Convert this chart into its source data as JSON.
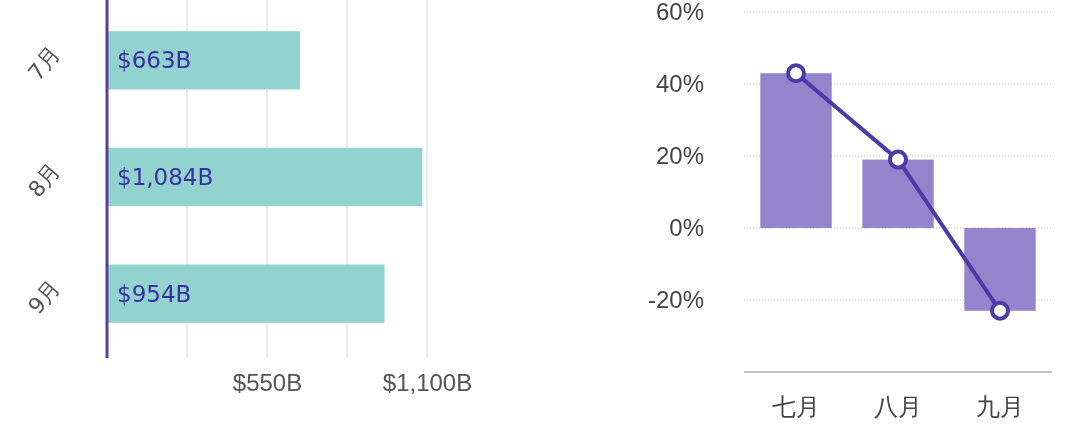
{
  "chart_data": [
    {
      "type": "bar",
      "orientation": "horizontal",
      "categories": [
        "7月",
        "8月",
        "9月"
      ],
      "values": [
        663,
        1084,
        954
      ],
      "color": "#93d3cf",
      "value_labels": [
        "$663B",
        "$1,084B",
        "$954B"
      ],
      "xlim": [
        0,
        1100
      ],
      "xticks": [
        {
          "value": 275,
          "label": null
        },
        {
          "value": 550,
          "label": "$550B"
        },
        {
          "value": 825,
          "label": null
        },
        {
          "value": 1100,
          "label": "$1,100B"
        }
      ],
      "grid": "x"
    },
    {
      "type": "bar",
      "categories": [
        "七月",
        "八月",
        "九月"
      ],
      "series": [
        {
          "type": "bar",
          "color": "#9484cc",
          "values": [
            43,
            19,
            -23
          ]
        },
        {
          "type": "line",
          "color": "#4b3aa8",
          "marker": "circle",
          "values": [
            43,
            19,
            -23
          ]
        }
      ],
      "ylim": [
        -40,
        60
      ],
      "yticks": [
        {
          "value": -20,
          "label": "-20%"
        },
        {
          "value": 0,
          "label": "0%"
        },
        {
          "value": 20,
          "label": "20%"
        },
        {
          "value": 40,
          "label": "40%"
        },
        {
          "value": 60,
          "label": "60%"
        }
      ],
      "grid": "y"
    }
  ]
}
